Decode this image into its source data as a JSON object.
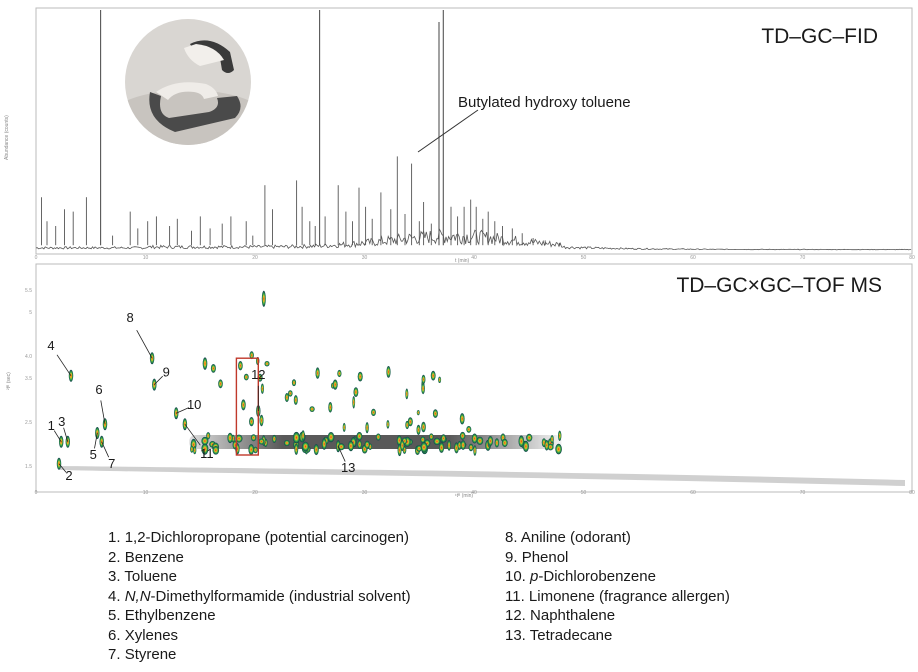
{
  "colors": {
    "trace": "#555555",
    "frame": "#bbbbbb",
    "highlight_box": "#c0392b",
    "peak_core": "#e03020",
    "peak_mid": "#3cb04a",
    "peak_outer": "#1f6e8c"
  },
  "chart_data": [
    {
      "type": "line",
      "title": "TD–GC–FID",
      "x_range": [
        0,
        80
      ],
      "x_ticks": [
        "0",
        "10",
        "20",
        "30",
        "40",
        "50",
        "60",
        "70",
        "80"
      ],
      "xlabel": "t (min)",
      "ylabel": "Abundance (counts)",
      "grid": false,
      "inset_image": "sample-photo",
      "peaks": [
        {
          "x": 0.5,
          "y": 0.22
        },
        {
          "x": 1.0,
          "y": 0.12
        },
        {
          "x": 1.8,
          "y": 0.1
        },
        {
          "x": 2.6,
          "y": 0.17
        },
        {
          "x": 3.4,
          "y": 0.16
        },
        {
          "x": 4.6,
          "y": 0.22
        },
        {
          "x": 5.9,
          "y": 1.0
        },
        {
          "x": 7.0,
          "y": 0.06
        },
        {
          "x": 8.6,
          "y": 0.16
        },
        {
          "x": 9.3,
          "y": 0.09
        },
        {
          "x": 10.2,
          "y": 0.12
        },
        {
          "x": 11.0,
          "y": 0.14
        },
        {
          "x": 12.2,
          "y": 0.1
        },
        {
          "x": 12.9,
          "y": 0.13
        },
        {
          "x": 14.2,
          "y": 0.08
        },
        {
          "x": 15.0,
          "y": 0.14
        },
        {
          "x": 15.9,
          "y": 0.09
        },
        {
          "x": 17.0,
          "y": 0.11
        },
        {
          "x": 17.8,
          "y": 0.14
        },
        {
          "x": 19.2,
          "y": 0.12
        },
        {
          "x": 19.8,
          "y": 0.06
        },
        {
          "x": 20.9,
          "y": 0.27
        },
        {
          "x": 21.6,
          "y": 0.17
        },
        {
          "x": 23.8,
          "y": 0.29
        },
        {
          "x": 24.3,
          "y": 0.18
        },
        {
          "x": 25.0,
          "y": 0.12
        },
        {
          "x": 25.5,
          "y": 0.1
        },
        {
          "x": 25.9,
          "y": 1.0
        },
        {
          "x": 26.4,
          "y": 0.14
        },
        {
          "x": 27.6,
          "y": 0.27
        },
        {
          "x": 28.3,
          "y": 0.16
        },
        {
          "x": 28.9,
          "y": 0.12
        },
        {
          "x": 29.5,
          "y": 0.26
        },
        {
          "x": 30.1,
          "y": 0.18
        },
        {
          "x": 30.7,
          "y": 0.13
        },
        {
          "x": 31.5,
          "y": 0.24
        },
        {
          "x": 32.4,
          "y": 0.17
        },
        {
          "x": 33.0,
          "y": 0.39
        },
        {
          "x": 33.7,
          "y": 0.15
        },
        {
          "x": 34.3,
          "y": 0.36
        },
        {
          "x": 35.0,
          "y": 0.12
        },
        {
          "x": 35.4,
          "y": 0.2
        },
        {
          "x": 36.1,
          "y": 0.11
        },
        {
          "x": 36.8,
          "y": 0.95
        },
        {
          "x": 37.2,
          "y": 1.0
        },
        {
          "x": 37.9,
          "y": 0.18
        },
        {
          "x": 38.5,
          "y": 0.14
        },
        {
          "x": 39.1,
          "y": 0.18
        },
        {
          "x": 39.7,
          "y": 0.21
        },
        {
          "x": 40.2,
          "y": 0.18
        },
        {
          "x": 40.8,
          "y": 0.13
        },
        {
          "x": 41.3,
          "y": 0.16
        },
        {
          "x": 41.9,
          "y": 0.12
        },
        {
          "x": 42.6,
          "y": 0.1
        },
        {
          "x": 43.5,
          "y": 0.09
        },
        {
          "x": 44.4,
          "y": 0.07
        },
        {
          "x": 45.4,
          "y": 0.05
        },
        {
          "x": 46.5,
          "y": 0.04
        },
        {
          "x": 47.8,
          "y": 0.03
        }
      ],
      "annotation": "Butylated hydroxy toluene"
    },
    {
      "type": "heatmap",
      "title": "TD–GC×GC–TOF MS",
      "x_range": [
        0,
        80
      ],
      "y_range": [
        1.0,
        6.0
      ],
      "x_ticks": [
        "0",
        "10",
        "20",
        "30",
        "40",
        "50",
        "60",
        "70",
        "80"
      ],
      "y_ticks": [
        "1.5",
        "2.5",
        "3.5",
        "4.0",
        "5",
        "5.5"
      ],
      "xlabel": "¹tᴿ (min)",
      "ylabel": "²tᴿ (sec)",
      "grid": false,
      "peak_labels": [
        {
          "label": "1",
          "x": 2.3,
          "y": 2.05
        },
        {
          "label": "2",
          "x": 2.1,
          "y": 1.55
        },
        {
          "label": "3",
          "x": 2.9,
          "y": 2.05
        },
        {
          "label": "4",
          "x": 3.2,
          "y": 3.55
        },
        {
          "label": "5",
          "x": 5.6,
          "y": 2.25
        },
        {
          "label": "6",
          "x": 6.3,
          "y": 2.45
        },
        {
          "label": "7",
          "x": 6.0,
          "y": 2.05
        },
        {
          "label": "8",
          "x": 10.6,
          "y": 3.95
        },
        {
          "label": "9",
          "x": 10.8,
          "y": 3.35
        },
        {
          "label": "10",
          "x": 12.8,
          "y": 2.7
        },
        {
          "label": "11",
          "x": 13.6,
          "y": 2.45
        },
        {
          "label": "12",
          "x": 20.3,
          "y": 2.75
        },
        {
          "label": "13",
          "x": 27.6,
          "y": 1.95
        }
      ],
      "highlight_region": {
        "label": "12",
        "x_range": [
          18.3,
          20.3
        ],
        "y_range": [
          1.75,
          3.95
        ]
      },
      "main_band": {
        "x_range": [
          14.0,
          48.0
        ],
        "y_center": 2.0
      }
    }
  ],
  "legend": {
    "left": [
      {
        "num": "1. ",
        "name": "1,2-Dichloropropane (potential carcinogen)"
      },
      {
        "num": "2. ",
        "name": "Benzene"
      },
      {
        "num": "3. ",
        "name": "Toluene"
      },
      {
        "num": "4. ",
        "prefix": "N,N",
        "name": "-Dimethylformamide (industrial solvent)"
      },
      {
        "num": "5. ",
        "name": "Ethylbenzene"
      },
      {
        "num": "6. ",
        "name": "Xylenes"
      },
      {
        "num": "7. ",
        "name": "Styrene"
      }
    ],
    "right": [
      {
        "num": "8. ",
        "name": "Aniline (odorant)"
      },
      {
        "num": "9. ",
        "name": "Phenol"
      },
      {
        "num": "10. ",
        "prefix": "p",
        "name": "-Dichlorobenzene"
      },
      {
        "num": "11. ",
        "name": "Limonene (fragrance allergen)"
      },
      {
        "num": "12. ",
        "name": "Naphthalene"
      },
      {
        "num": "13. ",
        "name": "Tetradecane"
      }
    ]
  }
}
